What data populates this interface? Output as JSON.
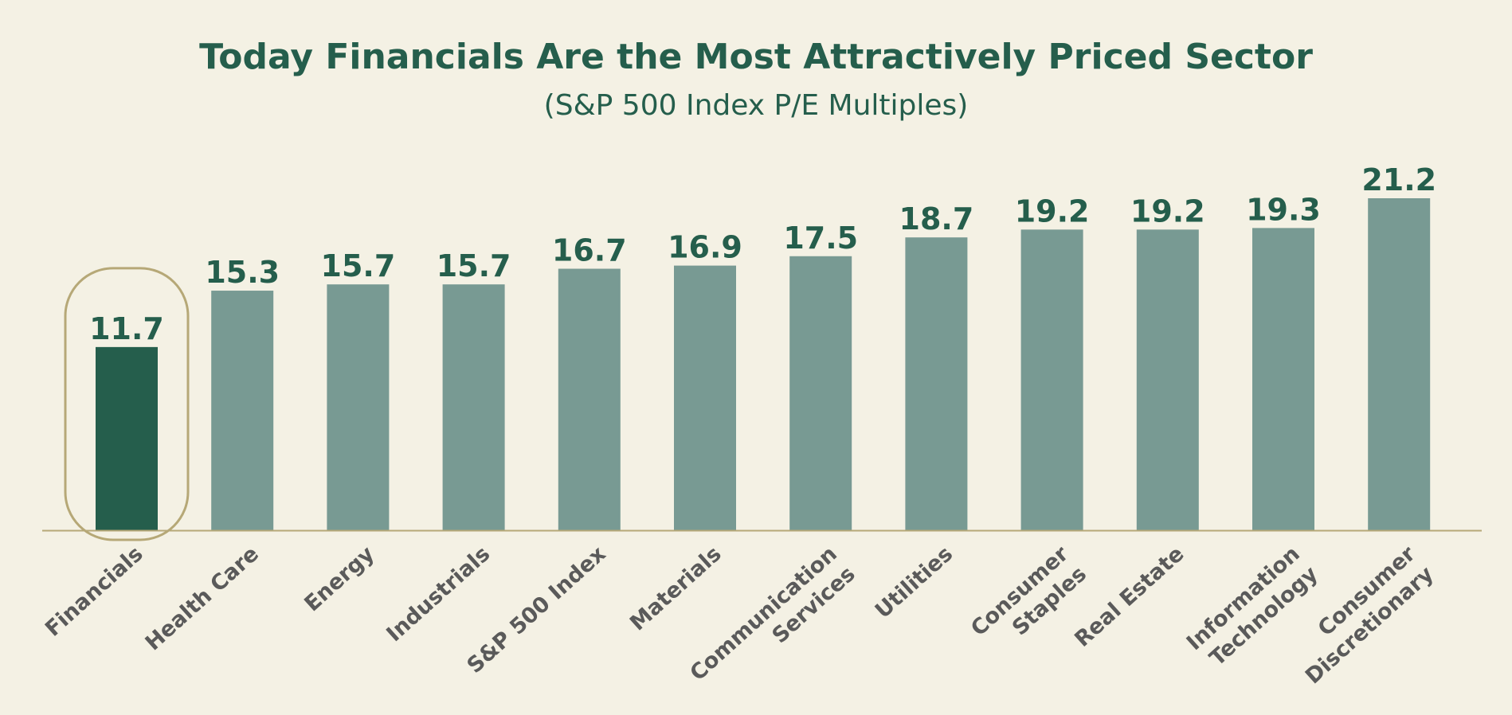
{
  "chart_data": {
    "type": "bar",
    "title": "Today Financials Are the Most Attractively Priced Sector",
    "subtitle": "(S&P 500 Index P/E Multiples)",
    "categories": [
      [
        "Financials"
      ],
      [
        "Health Care"
      ],
      [
        "Energy"
      ],
      [
        "Industrials"
      ],
      [
        "S&P 500 Index"
      ],
      [
        "Materials"
      ],
      [
        "Communication",
        "Services"
      ],
      [
        "Utilities"
      ],
      [
        "Consumer",
        "Staples"
      ],
      [
        "Real Estate"
      ],
      [
        "Information",
        "Technology"
      ],
      [
        "Consumer",
        "Discretionary"
      ]
    ],
    "values": [
      11.7,
      15.3,
      15.7,
      15.7,
      16.7,
      16.9,
      17.5,
      18.7,
      19.2,
      19.2,
      19.3,
      21.2
    ],
    "value_labels": [
      "11.7",
      "15.3",
      "15.7",
      "15.7",
      "16.7",
      "16.9",
      "17.5",
      "18.7",
      "19.2",
      "19.2",
      "19.3",
      "21.2"
    ],
    "ylim": [
      0,
      21.2
    ],
    "highlight_index": 0,
    "grid": false,
    "legend": false,
    "colors": {
      "highlight_bar": "#255e4c",
      "bar": "#789a93",
      "highlight_outline": "#b6a877",
      "baseline": "#b6a877",
      "text_primary": "#255e4c",
      "text_category": "#5a5a5a",
      "background": "#f4f1e4"
    }
  }
}
